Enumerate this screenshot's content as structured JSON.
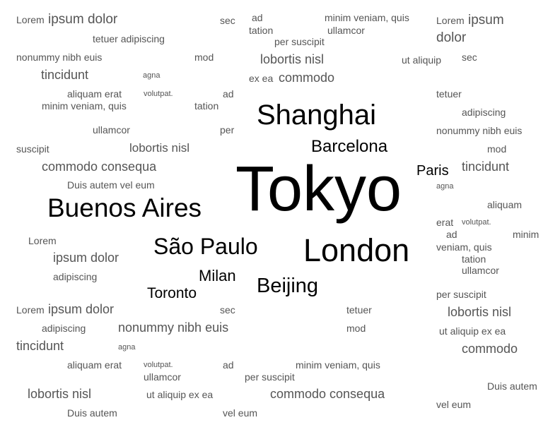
{
  "cities": {
    "tokyo": "Tokyo",
    "shanghai": "Shanghai",
    "barcelona": "Barcelona",
    "paris": "Paris",
    "buenos_aires": "Buenos Aires",
    "london": "London",
    "sao_paulo": "São Paulo",
    "milan": "Milan",
    "beijing": "Beijing",
    "toronto": "Toronto"
  },
  "filler": [
    "Lorem",
    "ipsum dolor",
    "sec",
    "ad",
    "tation",
    "minim veniam, quis",
    "ullamcor",
    "Lorem",
    "ipsum",
    "dolor",
    "tetuer adipiscing",
    "per suscipit",
    "nonummy nibh euis",
    "mod",
    "lobortis nisl",
    "ut aliquip",
    "sec",
    "tincidunt",
    "agna",
    "ex ea",
    "commodo",
    "aliquam erat",
    "volutpat.",
    "ad",
    "tetuer",
    "minim veniam, quis",
    "tation",
    "adipiscing",
    "ullamcor",
    "per",
    "nonummy nibh euis",
    "suscipit",
    "lobortis nisl",
    "mod",
    "commodo consequa",
    "tincidunt",
    "Duis autem vel eum",
    "agna",
    "aliquam",
    "erat",
    "volutpat.",
    "ad",
    "minim",
    "Lorem",
    "veniam, quis",
    "ipsum dolor",
    "tation",
    "ullamcor",
    "adipiscing",
    "per suscipit",
    "Lorem",
    "ipsum dolor",
    "sec",
    "tetuer",
    "lobortis nisl",
    "adipiscing",
    "nonummy nibh euis",
    "mod",
    "ut aliquip ex ea",
    "tincidunt",
    "agna",
    "commodo",
    "aliquam erat",
    "volutpat.",
    "ad",
    "minim veniam, quis",
    "ullamcor",
    "per suscipit",
    "Duis autem",
    "lobortis nisl",
    "ut aliquip ex ea",
    "commodo consequa",
    "vel eum",
    "Duis autem",
    "vel eum"
  ],
  "colors": {
    "city": "#000000",
    "filler": "#555555",
    "background": "#ffffff"
  }
}
